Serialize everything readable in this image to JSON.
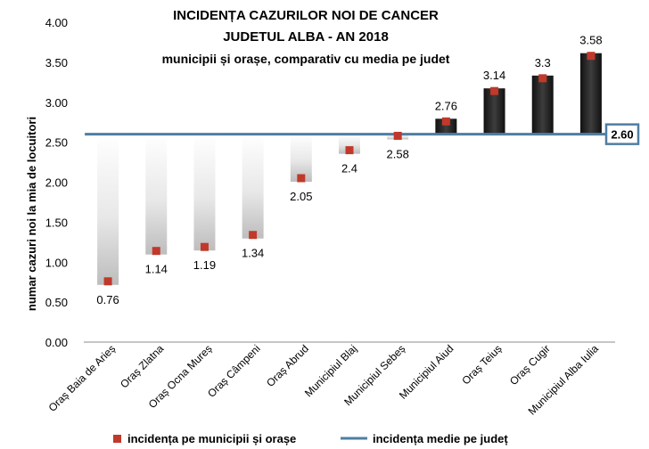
{
  "chart_data": {
    "type": "bar",
    "title_lines": [
      "INCIDENȚA CAZURILOR NOI DE CANCER",
      "JUDETUL ALBA - AN 2018",
      "municipii și orașe, comparativ cu media pe judet"
    ],
    "ylabel": "numar cazuri noi la mia de locuitori",
    "xlabel": "",
    "ylim": [
      0,
      4
    ],
    "yticks": [
      "0.00",
      "0.50",
      "1.00",
      "1.50",
      "2.00",
      "2.50",
      "3.00",
      "3.50",
      "4.00"
    ],
    "categories": [
      "Oraș Baia de Arieș",
      "Oraș Zlatna",
      "Oraș Ocna Mureș",
      "Oraș Câmpeni",
      "Oraș Abrud",
      "Municipiul Blaj",
      "Municipiul Sebeș",
      "Municipiul Aiud",
      "Oraș Teiuș",
      "Oraș Cugir",
      "Municipiul Alba Iulia"
    ],
    "series": [
      {
        "name": "incidența pe municipii și orașe",
        "values": [
          0.76,
          1.14,
          1.19,
          1.34,
          2.05,
          2.4,
          2.58,
          2.76,
          3.14,
          3.3,
          3.58
        ],
        "labels": [
          "0.76",
          "1.14",
          "1.19",
          "1.34",
          "2.05",
          "2.4",
          "2.58",
          "2.76",
          "3.14",
          "3.3",
          "3.58"
        ],
        "marker_color": "#c0392b"
      },
      {
        "name": "incidența medie pe județ",
        "value": 2.6,
        "label": "2.60",
        "line_color": "#4f7ea3"
      }
    ],
    "bar_below_avg_color": "#d9d9d9",
    "bar_above_avg_color": "#262626",
    "grid": false,
    "legend_position": "bottom"
  }
}
